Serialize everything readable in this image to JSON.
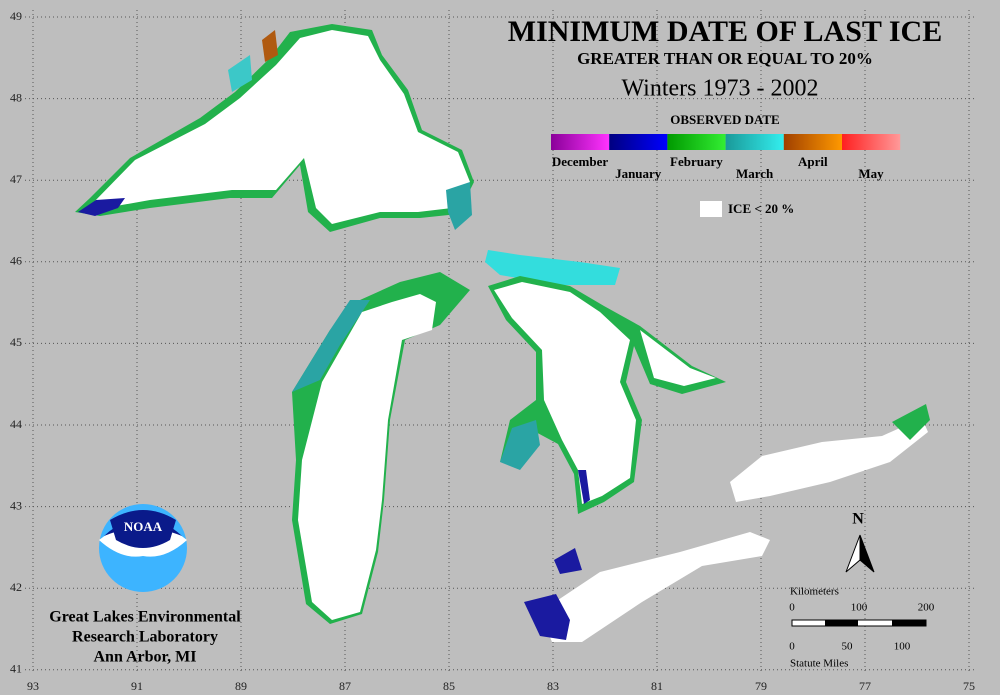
{
  "header": {
    "title": "MINIMUM DATE OF LAST ICE",
    "subtitle": "GREATER THAN OR EQUAL TO 20%",
    "period": "Winters 1973 - 2002"
  },
  "legend": {
    "title": "OBSERVED DATE",
    "months": [
      "December",
      "January",
      "February",
      "March",
      "April",
      "May"
    ],
    "no_ice": "ICE < 20 %"
  },
  "grid": {
    "latitudes": [
      49,
      48,
      47,
      46,
      45,
      44,
      43,
      42,
      41
    ],
    "longitudes": [
      93,
      91,
      89,
      87,
      85,
      83,
      81,
      79,
      77,
      75
    ]
  },
  "scale": {
    "km_title": "Kilometers",
    "km_ticks": [
      0,
      100,
      200
    ],
    "mile_ticks": [
      0,
      50,
      100
    ],
    "mile_title": "Statute Miles"
  },
  "north": "N",
  "logo": "NOAA",
  "credit": [
    "Great Lakes Environmental",
    "Research Laboratory",
    "Ann Arbor, MI"
  ]
}
